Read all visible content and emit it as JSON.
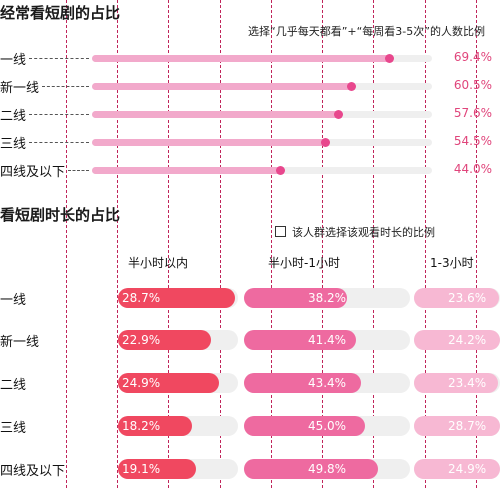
{
  "colors": {
    "accent": "#e8478d",
    "light_pink": "#f2a9cb",
    "red": "#f04860",
    "pink": "#ee6aa0",
    "pale_pink": "#f7b8d3",
    "track": "#efefef"
  },
  "chart_data": [
    {
      "type": "bar",
      "title": "经常看短剧的占比",
      "note": "选择“几乎每天都看”+“每周看3-5次”的人数比例",
      "categories": [
        "一线",
        "新一线",
        "二线",
        "三线",
        "四线及以下"
      ],
      "values": [
        69.4,
        60.5,
        57.6,
        54.5,
        44.0
      ],
      "labels": [
        "69.4%",
        "60.5%",
        "57.6%",
        "54.5%",
        "44.0%"
      ],
      "unit": "%"
    },
    {
      "type": "bar",
      "title": "看短剧时长的占比",
      "note": "该人群选择该观看时长的比例",
      "categories": [
        "一线",
        "新一线",
        "二线",
        "三线",
        "四线及以下"
      ],
      "series": [
        {
          "name": "半小时以内",
          "values": [
            28.7,
            22.9,
            24.9,
            18.2,
            19.1
          ],
          "labels": [
            "28.7%",
            "22.9%",
            "24.9%",
            "18.2%",
            "19.1%"
          ]
        },
        {
          "name": "半小时-1小时",
          "values": [
            38.2,
            41.4,
            43.4,
            45.0,
            49.8
          ],
          "labels": [
            "38.2%",
            "41.4%",
            "43.4%",
            "45.0%",
            "49.8%"
          ]
        },
        {
          "name": "1-3小时",
          "values": [
            23.6,
            24.2,
            23.4,
            28.7,
            24.9
          ],
          "labels": [
            "23.6%",
            "24.2%",
            "23.4%",
            "28.7%",
            "24.9%"
          ]
        }
      ],
      "unit": "%"
    }
  ]
}
